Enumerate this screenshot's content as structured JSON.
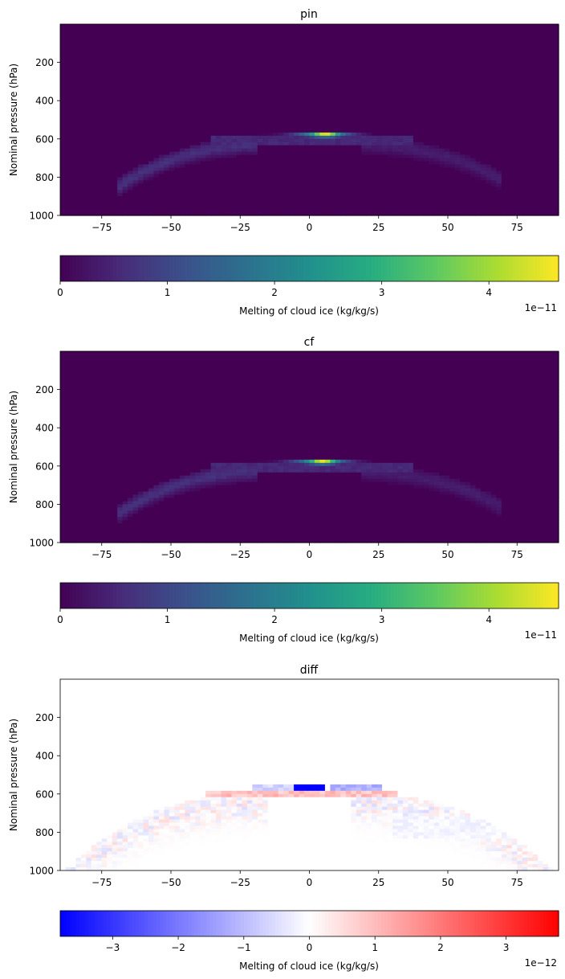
{
  "chart_data": [
    {
      "type": "heatmap",
      "title": "pin",
      "xlabel": "",
      "ylabel": "Nominal pressure (hPa)",
      "xlim": [
        -90,
        90
      ],
      "ylim": [
        1000,
        0
      ],
      "x_ticks": [
        -75,
        -50,
        -25,
        0,
        25,
        50,
        75
      ],
      "y_ticks": [
        200,
        400,
        600,
        800,
        1000
      ],
      "x_tick_labels": [
        "−75",
        "−50",
        "−25",
        "0",
        "25",
        "50",
        "75"
      ],
      "y_tick_labels": [
        "200",
        "400",
        "600",
        "800",
        "1000"
      ],
      "colormap": "viridis",
      "colorbar": {
        "label": "Melting of cloud ice (kg/kg/s)",
        "range": [
          0,
          4.65
        ],
        "ticks": [
          0,
          1,
          2,
          3,
          4
        ],
        "tick_labels": [
          "0",
          "1",
          "2",
          "3",
          "4"
        ],
        "offset_text": "1e−11",
        "orientation": "horizontal"
      },
      "features": [
        {
          "kind": "peak band",
          "lat_range": [
            -15,
            18
          ],
          "pressure": 580,
          "max_value": 4.65
        },
        {
          "kind": "arch",
          "lat_range": [
            -65,
            68
          ],
          "pressure_top": 600,
          "pressure_bottom": 1000,
          "typical_value": 0.5
        }
      ]
    },
    {
      "type": "heatmap",
      "title": "cf",
      "xlabel": "",
      "ylabel": "Nominal pressure (hPa)",
      "xlim": [
        -90,
        90
      ],
      "ylim": [
        1000,
        0
      ],
      "x_ticks": [
        -75,
        -50,
        -25,
        0,
        25,
        50,
        75
      ],
      "y_ticks": [
        200,
        400,
        600,
        800,
        1000
      ],
      "x_tick_labels": [
        "−75",
        "−50",
        "−25",
        "0",
        "25",
        "50",
        "75"
      ],
      "y_tick_labels": [
        "200",
        "400",
        "600",
        "800",
        "1000"
      ],
      "colormap": "viridis",
      "colorbar": {
        "label": "Melting of cloud ice (kg/kg/s)",
        "range": [
          0,
          4.65
        ],
        "ticks": [
          0,
          1,
          2,
          3,
          4
        ],
        "tick_labels": [
          "0",
          "1",
          "2",
          "3",
          "4"
        ],
        "offset_text": "1e−11",
        "orientation": "horizontal"
      },
      "features": [
        {
          "kind": "peak band",
          "lat_range": [
            -15,
            18
          ],
          "pressure": 575,
          "max_value": 4.6
        },
        {
          "kind": "arch",
          "lat_range": [
            -65,
            68
          ],
          "pressure_top": 600,
          "pressure_bottom": 1000,
          "typical_value": 0.5
        }
      ]
    },
    {
      "type": "heatmap",
      "title": "diff",
      "xlabel": "",
      "ylabel": "Nominal pressure (hPa)",
      "xlim": [
        -90,
        90
      ],
      "ylim": [
        1000,
        0
      ],
      "x_ticks": [
        -75,
        -50,
        -25,
        0,
        25,
        50,
        75
      ],
      "y_ticks": [
        200,
        400,
        600,
        800,
        1000
      ],
      "x_tick_labels": [
        "−75",
        "−50",
        "−25",
        "0",
        "25",
        "50",
        "75"
      ],
      "y_tick_labels": [
        "200",
        "400",
        "600",
        "800",
        "1000"
      ],
      "colormap": "bwr",
      "colorbar": {
        "label": "Melting of cloud ice (kg/kg/s)",
        "range": [
          -3.8,
          3.8
        ],
        "ticks": [
          -3,
          -2,
          -1,
          0,
          1,
          2,
          3
        ],
        "tick_labels": [
          "−3",
          "−2",
          "−1",
          "0",
          "1",
          "2",
          "3"
        ],
        "offset_text": "1e−12",
        "orientation": "horizontal"
      },
      "features": [
        {
          "kind": "negative core",
          "lat_range": [
            -5,
            5
          ],
          "pressure": 570,
          "min_value": -3.8
        },
        {
          "kind": "positive band",
          "lat_range": [
            -35,
            32
          ],
          "pressure": 600,
          "typical_value": 0.8
        },
        {
          "kind": "noisy arch",
          "lat_range": [
            -65,
            90
          ],
          "pressure_top": 600,
          "pressure_bottom": 1000,
          "typical_value": 0.3
        }
      ]
    }
  ]
}
